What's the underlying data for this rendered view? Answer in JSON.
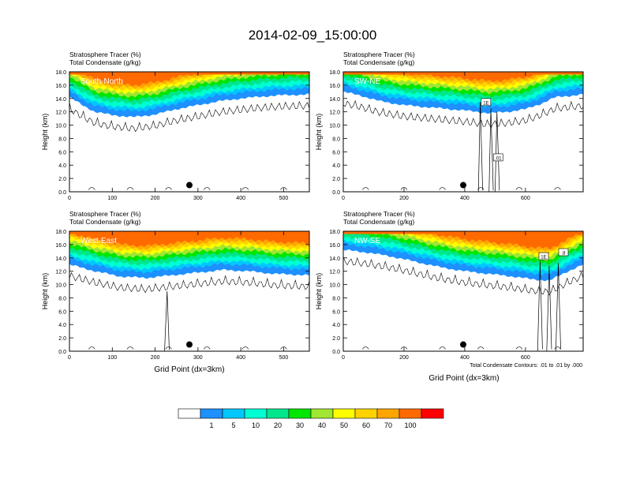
{
  "figure": {
    "title": "2014-02-09_15:00:00",
    "contour_note": "Total Condensate Contours: .01 to .01 by .000",
    "shared_xlabel": "Grid Point (dx=3km)"
  },
  "colorbar": {
    "colors": [
      "#ffffff",
      "#1e90ff",
      "#00c8ff",
      "#00ffd2",
      "#00e68c",
      "#00e600",
      "#a0e632",
      "#ffff00",
      "#ffd200",
      "#ffa500",
      "#ff6a00",
      "#ff0000"
    ],
    "labels": [
      "1",
      "5",
      "10",
      "20",
      "30",
      "40",
      "50",
      "60",
      "70",
      "100"
    ]
  },
  "chart_data": [
    {
      "type": "heatmap",
      "panel": "top-left",
      "annotation": "South-North",
      "title_lines": [
        "Stratosphere Tracer   (%)",
        "Total Condensate   (g/kg)"
      ],
      "ylabel": "Height (km)",
      "xlabel": "",
      "xlim": [
        0,
        560
      ],
      "ylim": [
        0,
        18
      ],
      "xticks": [
        0,
        100,
        200,
        300,
        400,
        500
      ],
      "yticks": [
        "0.0",
        "2.0",
        "4.0",
        "6.0",
        "8.0",
        "10.0",
        "12.0",
        "14.0",
        "16.0",
        "18.0"
      ],
      "marker_x": 280,
      "field_profile": {
        "x": [
          0,
          30,
          60,
          100,
          150,
          200,
          250,
          300,
          350,
          400,
          450,
          500,
          560
        ],
        "bottom_km": [
          14.2,
          13.0,
          12.0,
          11.5,
          11.2,
          11.6,
          12.4,
          13.0,
          13.6,
          14.0,
          14.3,
          14.5,
          14.6
        ]
      },
      "contour_labels": []
    },
    {
      "type": "heatmap",
      "panel": "top-right",
      "annotation": "SW-NE",
      "title_lines": [
        "Stratosphere Tracer   (%)",
        "Total Condensate   (g/kg)"
      ],
      "ylabel": "Height (km)",
      "xlabel": "",
      "xlim": [
        0,
        790
      ],
      "ylim": [
        0,
        18
      ],
      "xticks": [
        0,
        200,
        400,
        600
      ],
      "yticks": [
        "0.0",
        "2.0",
        "4.0",
        "6.0",
        "8.0",
        "10.0",
        "12.0",
        "14.0",
        "16.0",
        "18.0"
      ],
      "marker_x": 395,
      "field_profile": {
        "x": [
          0,
          60,
          120,
          200,
          300,
          400,
          480,
          540,
          600,
          650,
          700,
          790
        ],
        "bottom_km": [
          15.0,
          14.4,
          13.6,
          13.0,
          12.6,
          12.2,
          11.8,
          12.0,
          12.4,
          13.2,
          14.2,
          14.6
        ]
      },
      "contour_labels": [
        {
          "text": "1E",
          "x": 470,
          "y": 13.4
        },
        {
          "text": ".01",
          "x": 510,
          "y": 5.1
        }
      ]
    },
    {
      "type": "heatmap",
      "panel": "bottom-left",
      "annotation": "West-East",
      "title_lines": [
        "Stratosphere Tracer   (%)",
        "Total Condensate   (g/kg)"
      ],
      "ylabel": "Height (km)",
      "xlabel": "Grid Point (dx=3km)",
      "xlim": [
        0,
        560
      ],
      "ylim": [
        0,
        18
      ],
      "xticks": [
        0,
        100,
        200,
        300,
        400,
        500
      ],
      "yticks": [
        "0.0",
        "2.0",
        "4.0",
        "6.0",
        "8.0",
        "10.0",
        "12.0",
        "14.0",
        "16.0",
        "18.0"
      ],
      "marker_x": 280,
      "field_profile": {
        "x": [
          0,
          60,
          120,
          180,
          240,
          300,
          360,
          420,
          480,
          560
        ],
        "bottom_km": [
          13.0,
          12.0,
          11.2,
          11.0,
          11.4,
          11.8,
          12.2,
          12.0,
          11.6,
          11.4
        ]
      },
      "contour_labels": []
    },
    {
      "type": "heatmap",
      "panel": "bottom-right",
      "annotation": "NW-SE",
      "title_lines": [
        "Stratosphere Tracer   (%)",
        "Total Condensate   (g/kg)"
      ],
      "ylabel": "Height (km)",
      "xlabel": "Grid Point (dx=3km)",
      "xlim": [
        0,
        790
      ],
      "ylim": [
        0,
        18
      ],
      "xticks": [
        0,
        200,
        400,
        600
      ],
      "yticks": [
        "0.0",
        "2.0",
        "4.0",
        "6.0",
        "8.0",
        "10.0",
        "12.0",
        "14.0",
        "16.0",
        "18.0"
      ],
      "marker_x": 395,
      "field_profile": {
        "x": [
          0,
          80,
          160,
          240,
          320,
          400,
          480,
          560,
          620,
          680,
          740,
          790
        ],
        "bottom_km": [
          15.2,
          14.8,
          14.2,
          13.4,
          12.6,
          12.0,
          11.6,
          11.2,
          10.8,
          10.6,
          12.0,
          13.0
        ]
      },
      "contour_labels": [
        {
          "text": "1E",
          "x": 660,
          "y": 14.2
        },
        {
          "text": ".8",
          "x": 725,
          "y": 14.8
        }
      ]
    }
  ]
}
